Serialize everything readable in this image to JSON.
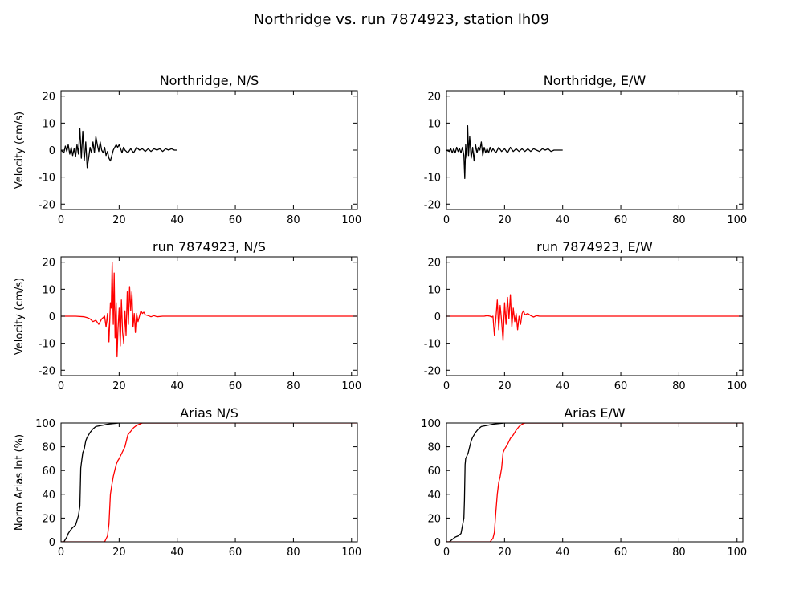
{
  "figure": {
    "title": "Northridge vs. run 7874923, station lh09"
  },
  "colors": {
    "recorded": "#000000",
    "simulated": "#ff0000"
  },
  "chart_data": [
    {
      "id": "p1",
      "type": "line",
      "title": "Northridge, N/S",
      "xlabel": "",
      "ylabel": "Velocity (cm/s)",
      "xlim": [
        0,
        102
      ],
      "ylim": [
        -22,
        22
      ],
      "xticks": [
        0,
        20,
        40,
        60,
        80,
        100
      ],
      "yticks": [
        -20,
        -10,
        0,
        10,
        20
      ],
      "series": [
        {
          "color_key": "recorded",
          "x": [
            0,
            1,
            1.5,
            2,
            2.5,
            3,
            3.5,
            4,
            4.5,
            5,
            5.5,
            6,
            6.5,
            7,
            7.5,
            8,
            8.5,
            9,
            9.5,
            10,
            10.5,
            11,
            11.5,
            12,
            12.5,
            13,
            13.5,
            14,
            14.5,
            15,
            15.5,
            16,
            16.5,
            17,
            17.5,
            18,
            18.5,
            19,
            19.5,
            20,
            20.5,
            21,
            21.5,
            22,
            23,
            24,
            25,
            26,
            27,
            28,
            29,
            30,
            31,
            32,
            33,
            34,
            35,
            36,
            37,
            38,
            39,
            40
          ],
          "y": [
            0,
            -1,
            1.5,
            -0.5,
            2,
            -1.5,
            1,
            -2,
            0.5,
            -2.5,
            2,
            -1.5,
            8,
            -3,
            7,
            -4,
            3,
            -6.5,
            -3,
            1,
            -1,
            3,
            -1,
            5,
            2,
            -0.5,
            3,
            0,
            -1,
            1,
            -2,
            -0.5,
            -3,
            -4,
            -2,
            0,
            1,
            2,
            1,
            2,
            0.5,
            -1,
            1,
            0,
            -1,
            0.5,
            -1,
            1,
            0,
            0.5,
            -0.5,
            0.5,
            -0.5,
            0.5,
            0,
            0.5,
            -0.5,
            0.5,
            0,
            0.5,
            0,
            0
          ]
        }
      ]
    },
    {
      "id": "p2",
      "type": "line",
      "title": "Northridge, E/W",
      "xlabel": "",
      "ylabel": "",
      "xlim": [
        0,
        102
      ],
      "ylim": [
        -22,
        22
      ],
      "xticks": [
        0,
        20,
        40,
        60,
        80,
        100
      ],
      "yticks": [
        -20,
        -10,
        0,
        10,
        20
      ],
      "series": [
        {
          "color_key": "recorded",
          "x": [
            0,
            1,
            1.5,
            2,
            2.5,
            3,
            3.5,
            4,
            4.5,
            5,
            5.5,
            6,
            6.3,
            6.6,
            7,
            7.3,
            7.6,
            8,
            8.5,
            9,
            9.5,
            10,
            10.5,
            11,
            11.5,
            12,
            12.5,
            13,
            13.5,
            14,
            14.5,
            15,
            15.5,
            16,
            17,
            18,
            19,
            20,
            21,
            22,
            23,
            24,
            25,
            26,
            27,
            28,
            29,
            30,
            31,
            32,
            33,
            34,
            35,
            36,
            37,
            38,
            39,
            40
          ],
          "y": [
            0,
            -0.5,
            0.5,
            -1,
            0.5,
            -1,
            1,
            -0.5,
            0.5,
            -1,
            1,
            -2,
            -10.5,
            2,
            -3,
            9,
            -2,
            5,
            -3,
            1,
            -4,
            2,
            -1,
            1,
            0,
            3,
            -2,
            1,
            -1,
            0.5,
            -1,
            1,
            -0.5,
            0.5,
            -1,
            1,
            -0.5,
            0.5,
            -1,
            1,
            -0.5,
            0.5,
            -0.5,
            0.5,
            -0.5,
            0.5,
            -0.5,
            0.5,
            0,
            -0.5,
            0.5,
            0,
            0.5,
            -0.5,
            0,
            0,
            0,
            0
          ]
        }
      ]
    },
    {
      "id": "p3",
      "type": "line",
      "title": "run 7874923, N/S",
      "xlabel": "",
      "ylabel": "Velocity (cm/s)",
      "xlim": [
        0,
        102
      ],
      "ylim": [
        -22,
        22
      ],
      "xticks": [
        0,
        20,
        40,
        60,
        80,
        100
      ],
      "yticks": [
        -20,
        -10,
        0,
        10,
        20
      ],
      "series": [
        {
          "color_key": "simulated",
          "x": [
            0,
            5,
            8,
            9,
            10,
            11,
            12,
            13,
            14,
            15,
            15.5,
            16,
            16.5,
            17,
            17.3,
            17.6,
            18,
            18.3,
            18.6,
            19,
            19.3,
            19.6,
            20,
            20.4,
            20.8,
            21.2,
            21.6,
            22,
            22.4,
            22.8,
            23.2,
            23.6,
            24,
            24.4,
            24.8,
            25.2,
            25.6,
            26,
            26.5,
            27,
            27.5,
            28,
            28.5,
            29,
            30,
            31,
            32,
            33,
            35,
            40,
            50,
            60,
            70,
            80,
            90,
            100,
            102
          ],
          "y": [
            0,
            0,
            -0.2,
            -0.5,
            -1,
            -2,
            -1.5,
            -3,
            -1,
            0,
            -4,
            1,
            -9.5,
            5,
            3,
            20,
            -3,
            16,
            -8,
            5,
            -15,
            -5,
            3,
            -11,
            6,
            -6,
            -10,
            2,
            -7,
            9,
            -3,
            11,
            2,
            9,
            -4,
            1,
            -6,
            1,
            -2,
            0,
            2,
            1,
            1.5,
            0.5,
            0.2,
            -0.2,
            0.2,
            -0.2,
            0,
            0,
            0,
            0,
            0,
            0,
            0,
            0,
            0
          ]
        }
      ]
    },
    {
      "id": "p4",
      "type": "line",
      "title": "run 7874923, E/W",
      "xlabel": "",
      "ylabel": "",
      "xlim": [
        0,
        102
      ],
      "ylim": [
        -22,
        22
      ],
      "xticks": [
        0,
        20,
        40,
        60,
        80,
        100
      ],
      "yticks": [
        -20,
        -10,
        0,
        10,
        20
      ],
      "series": [
        {
          "color_key": "simulated",
          "x": [
            0,
            5,
            10,
            13,
            14,
            15,
            15.5,
            16,
            16.5,
            17,
            17.5,
            18,
            18.5,
            19,
            19.5,
            20,
            20.5,
            21,
            21.5,
            22,
            22.5,
            23,
            23.5,
            24,
            24.5,
            25,
            25.5,
            26,
            26.5,
            27,
            28,
            29,
            30,
            31,
            32,
            35,
            40,
            50,
            60,
            70,
            80,
            90,
            100,
            102
          ],
          "y": [
            0,
            0,
            0,
            0,
            0.2,
            0,
            -0.3,
            0,
            -7,
            -1,
            6,
            -5,
            4,
            -2,
            -9,
            5,
            -3,
            7,
            -1,
            8,
            -4,
            3,
            -2,
            1,
            -5,
            0,
            -3,
            1,
            2,
            0.5,
            1,
            0.2,
            -0.3,
            0.2,
            0,
            0,
            0,
            0,
            0,
            0,
            0,
            0,
            0,
            0
          ]
        }
      ]
    },
    {
      "id": "p5",
      "type": "line",
      "title": "Arias N/S",
      "xlabel": "",
      "ylabel": "Norm Arias Int (%)",
      "xlim": [
        0,
        102
      ],
      "ylim": [
        0,
        100
      ],
      "xticks": [
        0,
        20,
        40,
        60,
        80,
        100
      ],
      "yticks": [
        0,
        20,
        40,
        60,
        80,
        100
      ],
      "series": [
        {
          "color_key": "recorded",
          "x": [
            0,
            1,
            2,
            2.5,
            3,
            4,
            5,
            6,
            6.5,
            6.8,
            7,
            7.5,
            8,
            8.5,
            9,
            10,
            11,
            12,
            14,
            16,
            18,
            20,
            22,
            25,
            30,
            40
          ],
          "y": [
            0,
            0,
            4,
            7,
            9,
            12,
            14,
            22,
            30,
            62,
            66,
            75,
            78,
            85,
            88,
            92,
            95,
            97,
            98,
            99,
            99.5,
            100,
            100,
            100,
            100,
            100
          ]
        },
        {
          "color_key": "simulated",
          "x": [
            0,
            5,
            10,
            15,
            16,
            16.5,
            17,
            17.5,
            18,
            18.5,
            19,
            19.5,
            20,
            21,
            22,
            22.5,
            23,
            24,
            25,
            26,
            27,
            28,
            30,
            40,
            102
          ],
          "y": [
            0,
            0,
            0,
            0,
            5,
            15,
            40,
            48,
            55,
            60,
            65,
            68,
            70,
            75,
            80,
            85,
            90,
            93,
            96,
            98,
            99,
            100,
            100,
            100,
            100
          ]
        }
      ]
    },
    {
      "id": "p6",
      "type": "line",
      "title": "Arias E/W",
      "xlabel": "",
      "ylabel": "",
      "xlim": [
        0,
        102
      ],
      "ylim": [
        0,
        100
      ],
      "xticks": [
        0,
        20,
        40,
        60,
        80,
        100
      ],
      "yticks": [
        0,
        20,
        40,
        60,
        80,
        100
      ],
      "series": [
        {
          "color_key": "recorded",
          "x": [
            0,
            1,
            2,
            3,
            4,
            5,
            6,
            6.2,
            6.4,
            6.6,
            7,
            7.5,
            8,
            8.5,
            9,
            10,
            11,
            12,
            14,
            16,
            18,
            20,
            22,
            25,
            30,
            40
          ],
          "y": [
            0,
            0,
            2,
            4,
            5,
            7,
            20,
            35,
            65,
            70,
            72,
            75,
            80,
            85,
            88,
            92,
            95,
            97,
            98,
            99,
            99.5,
            100,
            100,
            100,
            100,
            100
          ]
        },
        {
          "color_key": "simulated",
          "x": [
            0,
            5,
            10,
            15,
            16,
            16.5,
            17,
            17.5,
            18,
            18.5,
            19,
            19.5,
            20,
            21,
            22,
            23,
            24,
            25,
            26,
            27,
            28,
            30,
            40,
            102
          ],
          "y": [
            0,
            0,
            0,
            0,
            3,
            8,
            25,
            40,
            50,
            55,
            62,
            75,
            78,
            82,
            87,
            90,
            94,
            97,
            99,
            100,
            100,
            100,
            100,
            100
          ]
        }
      ]
    }
  ]
}
